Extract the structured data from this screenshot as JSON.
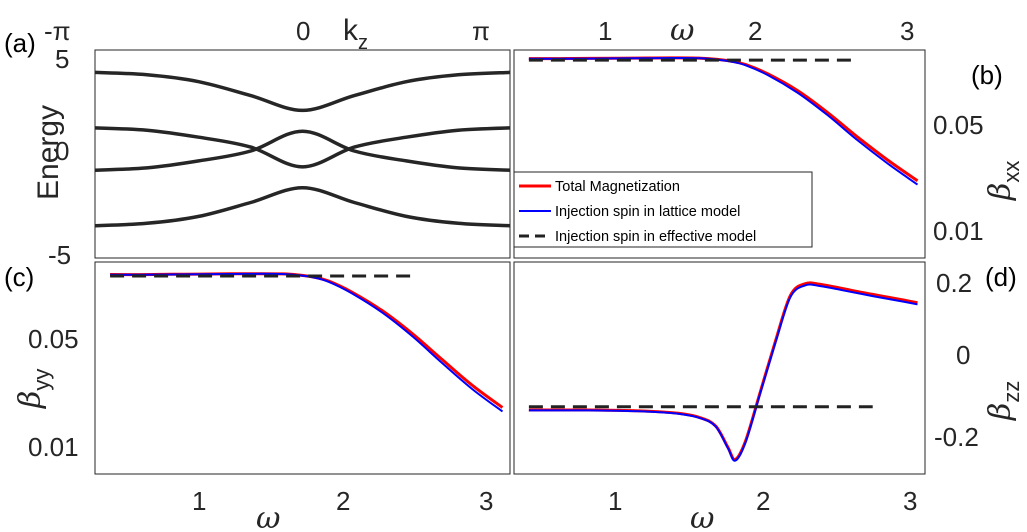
{
  "panel_labels": {
    "a": "(a)",
    "b": "(b)",
    "c": "(c)",
    "d": "(d)"
  },
  "panel_a": {
    "top_ticks": [
      "-π",
      "0",
      "π"
    ],
    "xlabel_base": "k",
    "xlabel_sub": "z",
    "ylabel": "Energy",
    "yticks": [
      "5",
      "0",
      "-5"
    ]
  },
  "panel_b": {
    "top_ticks": [
      "1",
      "2",
      "3"
    ],
    "top_xlabel": "ω",
    "ylabel_base": "β",
    "ylabel_sub": "xx",
    "yticks": [
      "0.05",
      "0.01"
    ]
  },
  "panel_c": {
    "ylabel_base": "β",
    "ylabel_sub": "yy",
    "yticks": [
      "0.05",
      "0.01"
    ],
    "xticks": [
      "1",
      "2",
      "3"
    ],
    "xlabel": "ω"
  },
  "panel_d": {
    "ylabel_base": "β",
    "ylabel_sub": "zz",
    "yticks": [
      "0.2",
      "0",
      "-0.2"
    ],
    "xticks": [
      "1",
      "2",
      "3"
    ],
    "xlabel": "ω"
  },
  "legend": {
    "items": [
      {
        "label": "Total Magnetization",
        "color": "#ff0000",
        "style": "solid"
      },
      {
        "label": "Injection spin in lattice model",
        "color": "#0000ff",
        "style": "solid"
      },
      {
        "label": "Injection spin in effective model",
        "color": "#222222",
        "style": "dashed"
      }
    ]
  },
  "chart_data": [
    {
      "panel": "a",
      "type": "line",
      "xlabel": "kz",
      "ylabel": "Energy",
      "xlim": [
        -3.1416,
        3.1416
      ],
      "ylim": [
        -5.5,
        5
      ],
      "x": [
        -3.1416,
        -2.356,
        -1.571,
        -0.785,
        0,
        0.785,
        1.571,
        2.356,
        3.1416
      ],
      "series": [
        {
          "values": [
            3.87,
            3.75,
            3.4,
            2.7,
            1.95,
            2.7,
            3.4,
            3.75,
            3.87
          ]
        },
        {
          "values": [
            1.07,
            0.95,
            0.6,
            0.1,
            -0.9,
            0.1,
            0.6,
            0.95,
            1.07
          ]
        },
        {
          "values": [
            -1.07,
            -0.95,
            -0.6,
            -0.1,
            0.9,
            -0.1,
            -0.6,
            -0.95,
            -1.07
          ]
        },
        {
          "values": [
            -3.87,
            -3.75,
            -3.4,
            -2.7,
            -1.95,
            -2.7,
            -3.4,
            -3.75,
            -3.87
          ]
        }
      ],
      "color": "#262626"
    },
    {
      "panel": "b",
      "type": "line",
      "xlabel": "ω",
      "ylabel": "βxx",
      "xlim": [
        0.3,
        3.05
      ],
      "ylim": [
        0.005,
        0.1
      ],
      "x": [
        0.4,
        0.6,
        0.8,
        1.0,
        1.2,
        1.4,
        1.55,
        1.65,
        1.75,
        1.85,
        2.0,
        2.2,
        2.4,
        2.6,
        2.8,
        3.0
      ],
      "series": [
        {
          "name": "Total Magnetization",
          "color": "#ff0000",
          "values": [
            0.0884,
            0.0883,
            0.0886,
            0.0888,
            0.0891,
            0.0893,
            0.0889,
            0.0876,
            0.0852,
            0.081,
            0.0708,
            0.0555,
            0.0405,
            0.0285,
            0.0205,
            0.0152
          ]
        },
        {
          "name": "Injection spin in lattice model",
          "color": "#0000ff",
          "values": [
            0.0882,
            0.0881,
            0.0884,
            0.0886,
            0.0889,
            0.0891,
            0.0887,
            0.0873,
            0.0847,
            0.0802,
            0.0695,
            0.0538,
            0.039,
            0.0272,
            0.0195,
            0.0144
          ]
        },
        {
          "name": "Injection spin in effective model",
          "color": "#222222",
          "values": [
            0.0865,
            0.0865,
            0.0865,
            0.0865,
            0.0865,
            0.0865,
            0.0865,
            0.0865,
            0.0865,
            0.0865,
            0.0865,
            0.0865,
            0.0865,
            0.0865,
            null,
            null
          ]
        }
      ]
    },
    {
      "panel": "c",
      "type": "line",
      "xlabel": "ω",
      "ylabel": "βyy",
      "xlim": [
        0.3,
        3.05
      ],
      "ylim": [
        0.005,
        0.1
      ],
      "x": [
        0.4,
        0.6,
        0.8,
        1.0,
        1.2,
        1.4,
        1.55,
        1.65,
        1.75,
        1.85,
        2.0,
        2.2,
        2.4,
        2.6,
        2.8,
        3.0
      ],
      "series": [
        {
          "name": "Total Magnetization",
          "color": "#ff0000",
          "values": [
            0.0838,
            0.0837,
            0.084,
            0.0843,
            0.0846,
            0.0848,
            0.0845,
            0.0832,
            0.0808,
            0.0762,
            0.0655,
            0.0505,
            0.0365,
            0.0252,
            0.0175,
            0.0128
          ]
        },
        {
          "name": "Injection spin in lattice model",
          "color": "#0000ff",
          "values": [
            0.0836,
            0.0835,
            0.0838,
            0.0841,
            0.0844,
            0.0846,
            0.0843,
            0.0829,
            0.0803,
            0.0755,
            0.0644,
            0.0492,
            0.0352,
            0.024,
            0.0166,
            0.0121
          ]
        },
        {
          "name": "Injection spin in effective model",
          "color": "#222222",
          "values": [
            0.082,
            0.082,
            0.082,
            0.082,
            0.082,
            0.082,
            0.082,
            0.082,
            0.082,
            0.082,
            0.082,
            0.082,
            0.082,
            null,
            null,
            null
          ]
        }
      ]
    },
    {
      "panel": "d",
      "type": "line",
      "xlabel": "ω",
      "ylabel": "βzz",
      "xlim": [
        0.3,
        3.05
      ],
      "ylim": [
        -0.28,
        0.23
      ],
      "x": [
        0.4,
        0.6,
        0.8,
        1.0,
        1.2,
        1.4,
        1.55,
        1.65,
        1.73,
        1.78,
        1.85,
        1.95,
        2.05,
        2.15,
        2.25,
        2.35,
        2.5,
        2.7,
        2.9,
        3.0
      ],
      "series": [
        {
          "name": "Total Magnetization",
          "color": "#ff0000",
          "values": [
            -0.126,
            -0.126,
            -0.126,
            -0.127,
            -0.129,
            -0.134,
            -0.145,
            -0.165,
            -0.215,
            -0.245,
            -0.2,
            -0.08,
            0.04,
            0.15,
            0.178,
            0.176,
            0.166,
            0.152,
            0.139,
            0.132
          ]
        },
        {
          "name": "Injection spin in lattice model",
          "color": "#0000ff",
          "values": [
            -0.127,
            -0.127,
            -0.127,
            -0.128,
            -0.13,
            -0.135,
            -0.146,
            -0.166,
            -0.217,
            -0.248,
            -0.203,
            -0.083,
            0.036,
            0.146,
            0.174,
            0.172,
            0.162,
            0.148,
            0.135,
            0.128
          ]
        },
        {
          "name": "Injection spin in effective model",
          "color": "#222222",
          "values": [
            -0.118,
            -0.118,
            -0.118,
            -0.118,
            -0.118,
            -0.118,
            -0.118,
            -0.118,
            -0.118,
            -0.118,
            -0.118,
            -0.118,
            -0.118,
            -0.118,
            -0.118,
            -0.118,
            -0.118,
            -0.118,
            null,
            null
          ]
        }
      ]
    }
  ]
}
